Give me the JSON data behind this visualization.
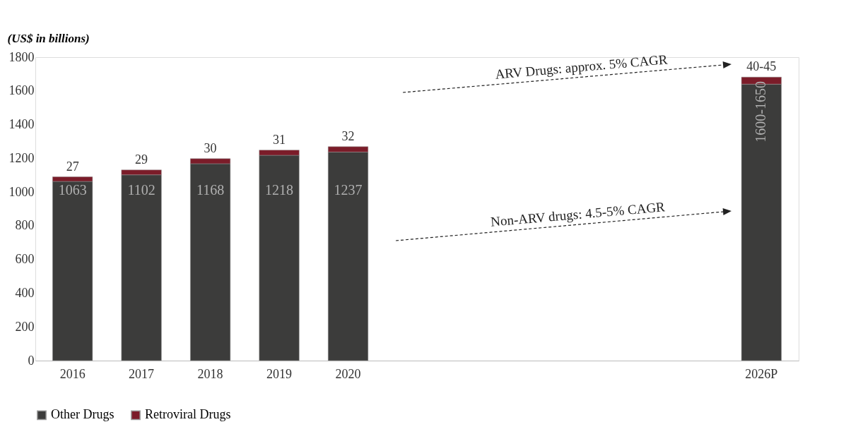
{
  "chart_data": {
    "type": "bar",
    "stacked": true,
    "ylabel": "(US$ in billions)",
    "categories": [
      "2016",
      "2017",
      "2018",
      "2019",
      "2020",
      null,
      null,
      null,
      null,
      null,
      "2026P"
    ],
    "series": [
      {
        "name": "Other Drugs",
        "color": "#3c3c3b",
        "values": [
          1063,
          1102,
          1168,
          1218,
          1237,
          null,
          null,
          null,
          null,
          null,
          1640
        ],
        "value_labels": [
          "1063",
          "1102",
          "1168",
          "1218",
          "1237",
          null,
          null,
          null,
          null,
          null,
          "1600-1650"
        ]
      },
      {
        "name": "Retroviral Drugs",
        "color": "#7b1c29",
        "values": [
          27,
          29,
          30,
          31,
          32,
          null,
          null,
          null,
          null,
          null,
          42
        ],
        "value_labels": [
          "27",
          "29",
          "30",
          "31",
          "32",
          null,
          null,
          null,
          null,
          null,
          "40-45"
        ]
      }
    ],
    "ylim": [
      0,
      1800
    ],
    "yticks": [
      0,
      200,
      400,
      600,
      800,
      1000,
      1200,
      1400,
      1600,
      1800
    ],
    "grid": false,
    "legend": "bottom",
    "annotations": [
      "ARV Drugs: approx. 5% CAGR",
      "Non-ARV drugs: 4.5-5% CAGR"
    ]
  }
}
